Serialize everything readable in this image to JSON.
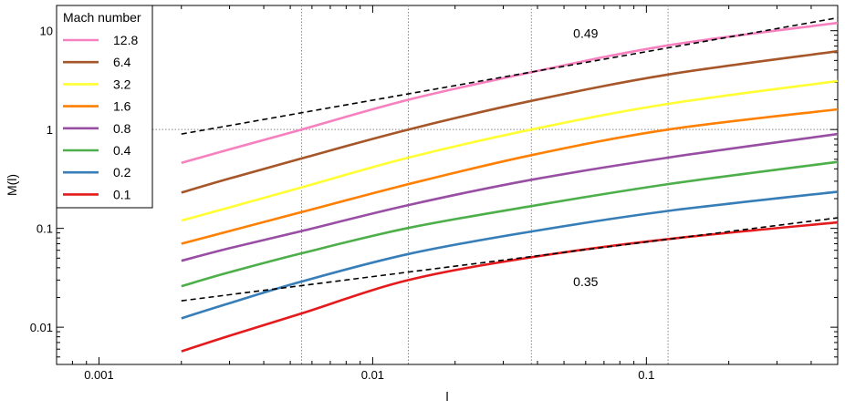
{
  "chart_data": {
    "type": "line",
    "title": "",
    "xlabel": "l",
    "ylabel": "M(l)",
    "x_scale": "log",
    "y_scale": "log",
    "xlim": [
      0.0007,
      0.5
    ],
    "ylim": [
      0.0042,
      18
    ],
    "x_ticks": [
      {
        "value": 0.001,
        "label": "0.001"
      },
      {
        "value": 0.01,
        "label": "0.01"
      },
      {
        "value": 0.1,
        "label": "0.1"
      }
    ],
    "y_ticks": [
      {
        "value": 0.01,
        "label": "0.01"
      },
      {
        "value": 0.1,
        "label": "0.1"
      },
      {
        "value": 1,
        "label": "1"
      },
      {
        "value": 10,
        "label": "10"
      }
    ],
    "legend": {
      "title": "Mach number",
      "position": "top-left"
    },
    "x": [
      0.002,
      0.003,
      0.0055,
      0.0135,
      0.038,
      0.12,
      0.5
    ],
    "series": [
      {
        "name": "12.8",
        "color": "#f781bf",
        "values": [
          0.46,
          0.63,
          1.0,
          2.0,
          3.8,
          7.1,
          12.0
        ]
      },
      {
        "name": "6.4",
        "color": "#a65628",
        "values": [
          0.23,
          0.32,
          0.51,
          1.0,
          1.95,
          3.6,
          6.2
        ]
      },
      {
        "name": "3.2",
        "color": "#ffff33",
        "values": [
          0.12,
          0.163,
          0.26,
          0.52,
          1.0,
          1.82,
          3.1
        ]
      },
      {
        "name": "1.6",
        "color": "#ff7f00",
        "values": [
          0.07,
          0.094,
          0.146,
          0.28,
          0.55,
          1.0,
          1.6
        ]
      },
      {
        "name": "0.8",
        "color": "#984ea3",
        "values": [
          0.047,
          0.063,
          0.094,
          0.172,
          0.31,
          0.52,
          0.9
        ]
      },
      {
        "name": "0.4",
        "color": "#4daf4a",
        "values": [
          0.026,
          0.036,
          0.056,
          0.101,
          0.168,
          0.28,
          0.47
        ]
      },
      {
        "name": "0.2",
        "color": "#377eb8",
        "values": [
          0.0123,
          0.0175,
          0.029,
          0.055,
          0.093,
          0.15,
          0.235
        ]
      },
      {
        "name": "0.1",
        "color": "#e41a1c",
        "values": [
          0.0057,
          0.0082,
          0.0138,
          0.03,
          0.051,
          0.078,
          0.115
        ]
      }
    ],
    "reference_lines": [
      {
        "label": "0.49",
        "color": "#000000",
        "style": "dashed",
        "x": [
          0.002,
          0.5
        ],
        "y": [
          0.9,
          13.5
        ]
      },
      {
        "label": "0.35",
        "color": "#000000",
        "style": "dashed",
        "x": [
          0.002,
          0.5
        ],
        "y": [
          0.0185,
          0.128
        ]
      }
    ],
    "vertical_guides": [
      0.0055,
      0.0135,
      0.038,
      0.12
    ],
    "horizontal_guides": [
      1
    ],
    "annotations": [
      {
        "text": "0.49",
        "x": 0.06,
        "y": 8.5
      },
      {
        "text": "0.35",
        "x": 0.06,
        "y": 0.026
      }
    ]
  }
}
